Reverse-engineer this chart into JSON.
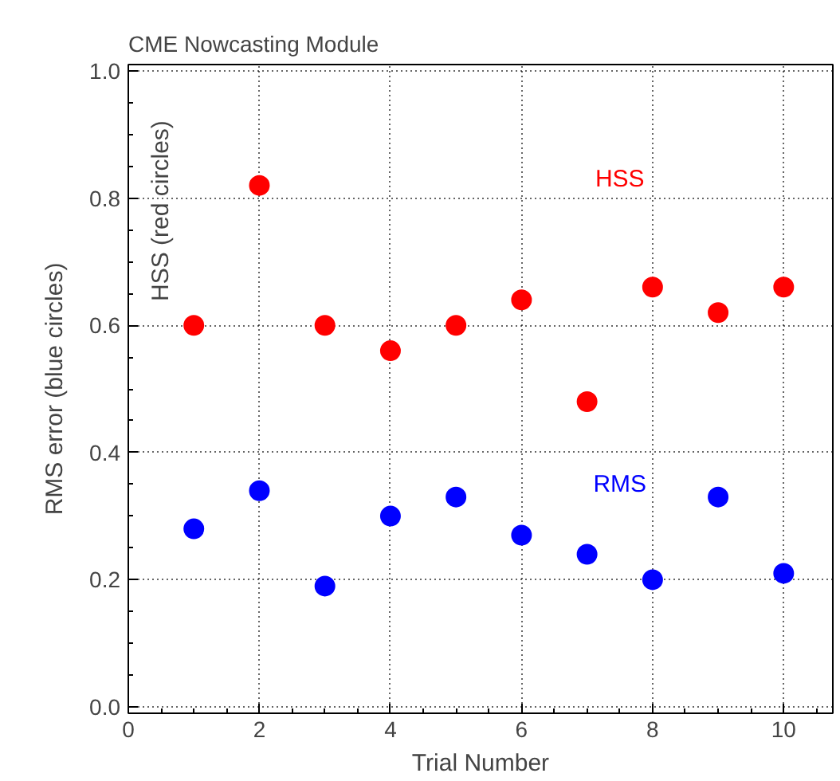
{
  "chart_data": {
    "type": "scatter",
    "title": "CME Nowcasting Module",
    "xlabel": "Trial Number",
    "ylabel": "RMS error (blue circles)",
    "annotations": [
      "HSS (red circles)"
    ],
    "x": [
      1,
      2,
      3,
      4,
      5,
      6,
      7,
      8,
      9,
      10
    ],
    "series": [
      {
        "name": "HSS",
        "color": "#ff0000",
        "values": [
          0.6,
          0.82,
          0.6,
          0.56,
          0.6,
          0.64,
          0.48,
          0.66,
          0.62,
          0.66
        ]
      },
      {
        "name": "RMS",
        "color": "#0000ff",
        "values": [
          0.28,
          0.34,
          0.19,
          0.3,
          0.33,
          0.27,
          0.24,
          0.2,
          0.33,
          0.21
        ]
      }
    ],
    "xlim": [
      0,
      10.75
    ],
    "ylim": [
      -0.01,
      1.01
    ],
    "xticks": [
      0,
      2,
      4,
      6,
      8,
      10
    ],
    "yticks": [
      {
        "value": 0,
        "label": "0.0"
      },
      {
        "value": 0.2,
        "label": "0.2"
      },
      {
        "value": 0.4,
        "label": "0.4"
      },
      {
        "value": 0.6,
        "label": "0.6"
      },
      {
        "value": 0.8,
        "label": "0.8"
      },
      {
        "value": 1,
        "label": "1.0"
      }
    ],
    "grid": true,
    "marker": "circle"
  }
}
